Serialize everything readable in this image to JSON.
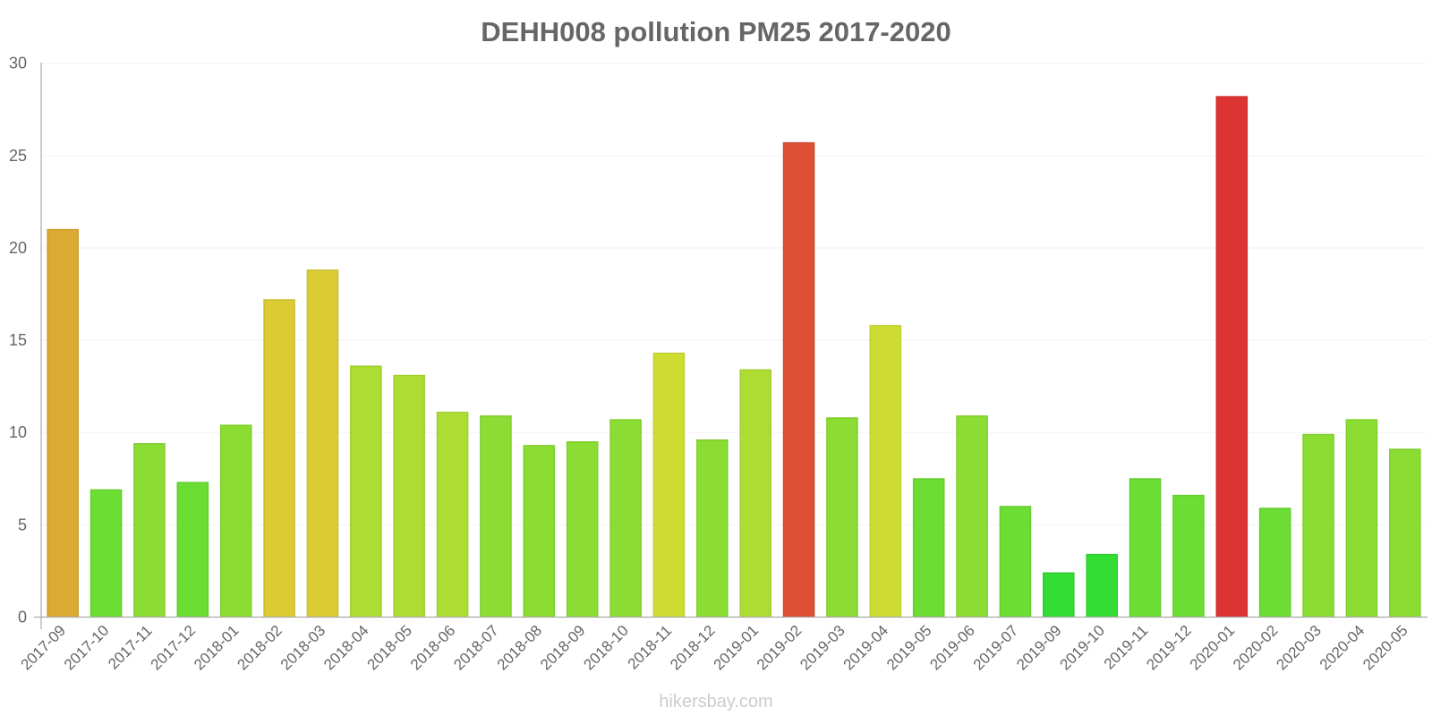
{
  "chart_data": {
    "type": "bar",
    "title": "DEHH008 pollution PM25 2017-2020",
    "xlabel": "",
    "ylabel": "",
    "ylim": [
      0,
      30
    ],
    "yticks": [
      0,
      5,
      10,
      15,
      20,
      25,
      30
    ],
    "grid": true,
    "legend": null,
    "categories": [
      "2017-09",
      "2017-10",
      "2017-11",
      "2017-12",
      "2018-01",
      "2018-02",
      "2018-03",
      "2018-04",
      "2018-05",
      "2018-06",
      "2018-07",
      "2018-08",
      "2018-09",
      "2018-10",
      "2018-11",
      "2018-12",
      "2019-01",
      "2019-02",
      "2019-03",
      "2019-04",
      "2019-05",
      "2019-06",
      "2019-07",
      "2019-09",
      "2019-10",
      "2019-11",
      "2019-12",
      "2020-01",
      "2020-02",
      "2020-03",
      "2020-04",
      "2020-05"
    ],
    "values": [
      21.0,
      6.9,
      9.4,
      7.3,
      10.4,
      17.2,
      18.8,
      13.6,
      13.1,
      11.1,
      10.9,
      9.3,
      9.5,
      10.7,
      14.3,
      9.6,
      13.4,
      25.7,
      10.8,
      15.8,
      7.5,
      10.9,
      6.0,
      2.4,
      3.4,
      7.5,
      6.6,
      28.2,
      5.9,
      9.9,
      10.7,
      9.1
    ],
    "colors": [
      "#dbaa33",
      "#6bdd33",
      "#8bdd33",
      "#6bdd33",
      "#8bdd33",
      "#dbcc33",
      "#dbcc33",
      "#addd33",
      "#addd33",
      "#addd33",
      "#8bdd33",
      "#8bdd33",
      "#8bdd33",
      "#8bdd33",
      "#cfdd33",
      "#8bdd33",
      "#addd33",
      "#dd5033",
      "#8bdd33",
      "#cfdd33",
      "#6bdd33",
      "#8bdd33",
      "#6bdd33",
      "#33dd33",
      "#33dd33",
      "#6bdd33",
      "#6bdd33",
      "#dd3333",
      "#6bdd33",
      "#8bdd33",
      "#8bdd33",
      "#8bdd33"
    ]
  },
  "watermark": "hikersbay.com"
}
